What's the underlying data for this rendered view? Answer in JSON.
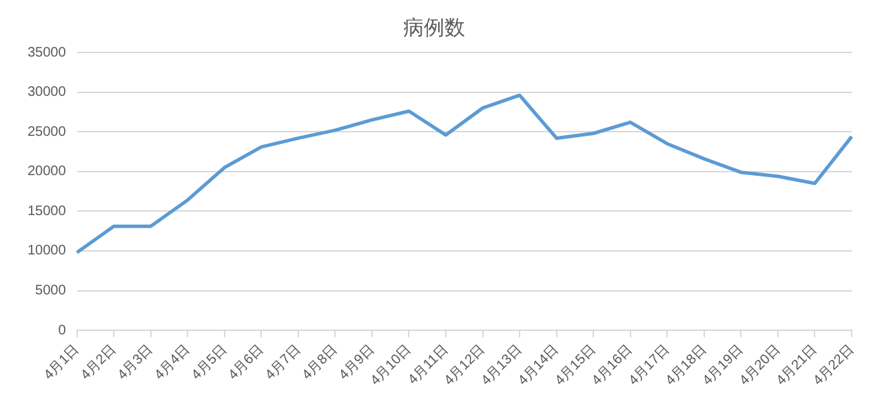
{
  "chart_data": {
    "type": "line",
    "title": "病例数",
    "categories": [
      "4月1日",
      "4月2日",
      "4月3日",
      "4月4日",
      "4月5日",
      "4月6日",
      "4月7日",
      "4月8日",
      "4月9日",
      "4月10日",
      "4月11日",
      "4月12日",
      "4月13日",
      "4月14日",
      "4月15日",
      "4月16日",
      "4月17日",
      "4月18日",
      "4月19日",
      "4月20日",
      "4月21日",
      "4月22日"
    ],
    "series": [
      {
        "color": "#5b9bd5",
        "values": [
          9800,
          13100,
          13100,
          16400,
          20500,
          23100,
          24200,
          25200,
          26500,
          27600,
          24600,
          28000,
          29600,
          24200,
          24800,
          26200,
          23500,
          21600,
          19900,
          19400,
          18500,
          24400
        ]
      }
    ],
    "ylim": [
      0,
      35000
    ],
    "yticks": [
      0,
      5000,
      10000,
      15000,
      20000,
      25000,
      30000,
      35000
    ],
    "grid": "y",
    "legend": false,
    "marker": "none",
    "line_style": "solid"
  }
}
